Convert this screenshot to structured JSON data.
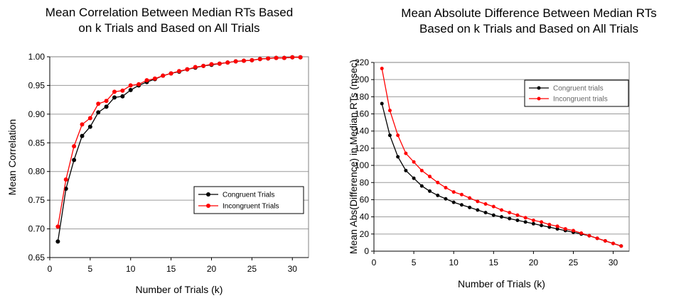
{
  "chart_data": [
    {
      "type": "line",
      "title": [
        "Mean Correlation Between Median RTs Based",
        "on k Trials and Based on All Trials"
      ],
      "xlabel": "Number of Trials (k)",
      "ylabel": "Mean Correlation",
      "xlim": [
        0,
        32
      ],
      "ylim": [
        0.65,
        1.0
      ],
      "xticks": [
        0,
        5,
        10,
        15,
        20,
        25,
        30
      ],
      "yticks": [
        0.65,
        0.7,
        0.75,
        0.8,
        0.85,
        0.9,
        0.95,
        1.0
      ],
      "ytick_labels": [
        "0.65",
        "0.70",
        "0.75",
        "0.80",
        "0.85",
        "0.90",
        "0.95",
        "1.00"
      ],
      "grid": "horizontal",
      "legend_position": "lower-right",
      "x": [
        1,
        2,
        3,
        4,
        5,
        6,
        7,
        8,
        9,
        10,
        11,
        12,
        13,
        14,
        15,
        16,
        17,
        18,
        19,
        20,
        21,
        22,
        23,
        24,
        25,
        26,
        27,
        28,
        29,
        30,
        31
      ],
      "series": [
        {
          "name": "Congruent Trials",
          "color": "#000000",
          "values": [
            0.678,
            0.77,
            0.82,
            0.862,
            0.878,
            0.903,
            0.913,
            0.929,
            0.931,
            0.942,
            0.95,
            0.956,
            0.961,
            0.967,
            0.971,
            0.974,
            0.978,
            0.981,
            0.984,
            0.986,
            0.988,
            0.99,
            0.992,
            0.993,
            0.994,
            0.996,
            0.997,
            0.998,
            0.998,
            0.999,
            0.999
          ]
        },
        {
          "name": "Incongruent Trials",
          "color": "#ff0000",
          "values": [
            0.704,
            0.786,
            0.844,
            0.882,
            0.893,
            0.918,
            0.923,
            0.939,
            0.941,
            0.95,
            0.952,
            0.959,
            0.962,
            0.967,
            0.971,
            0.975,
            0.978,
            0.982,
            0.984,
            0.987,
            0.988,
            0.99,
            0.992,
            0.993,
            0.994,
            0.996,
            0.997,
            0.998,
            0.998,
            0.999,
            0.999
          ]
        }
      ]
    },
    {
      "type": "line",
      "title": [
        "Mean Absolute Difference Between Median RTs",
        "Based on k Trials and Based on All Trials"
      ],
      "xlabel": "Number of Trials (k)",
      "ylabel": "Mean Abs(Difference) in Median RTs (msec)",
      "xlim": [
        0,
        32
      ],
      "ylim": [
        0,
        220
      ],
      "xticks": [
        0,
        5,
        10,
        15,
        20,
        25,
        30
      ],
      "yticks": [
        0,
        20,
        40,
        60,
        80,
        100,
        120,
        140,
        160,
        180,
        200,
        220
      ],
      "ytick_labels": [
        "0",
        "20",
        "40",
        "60",
        "80",
        "100",
        "120",
        "140",
        "160",
        "180",
        "200",
        "220"
      ],
      "grid": "horizontal",
      "legend_position": "top-right",
      "x": [
        1,
        2,
        3,
        4,
        5,
        6,
        7,
        8,
        9,
        10,
        11,
        12,
        13,
        14,
        15,
        16,
        17,
        18,
        19,
        20,
        21,
        22,
        23,
        24,
        25,
        26,
        27,
        28,
        29,
        30,
        31
      ],
      "series": [
        {
          "name": "Congruent trials",
          "color": "#000000",
          "values": [
            172,
            135,
            110,
            94,
            85,
            76,
            70,
            65,
            61,
            57,
            54,
            51,
            48,
            45,
            42,
            40,
            38,
            36,
            34,
            32,
            30,
            28,
            26,
            24,
            22,
            20,
            18,
            15,
            12,
            9,
            6
          ]
        },
        {
          "name": "Incongruent trials",
          "color": "#ff0000",
          "values": [
            213,
            164,
            135,
            114,
            104,
            94,
            87,
            80,
            74,
            69,
            66,
            62,
            58,
            55,
            52,
            48,
            45,
            42,
            39,
            36,
            34,
            31,
            29,
            26,
            24,
            21,
            18,
            15,
            12,
            9,
            6
          ]
        }
      ]
    }
  ]
}
